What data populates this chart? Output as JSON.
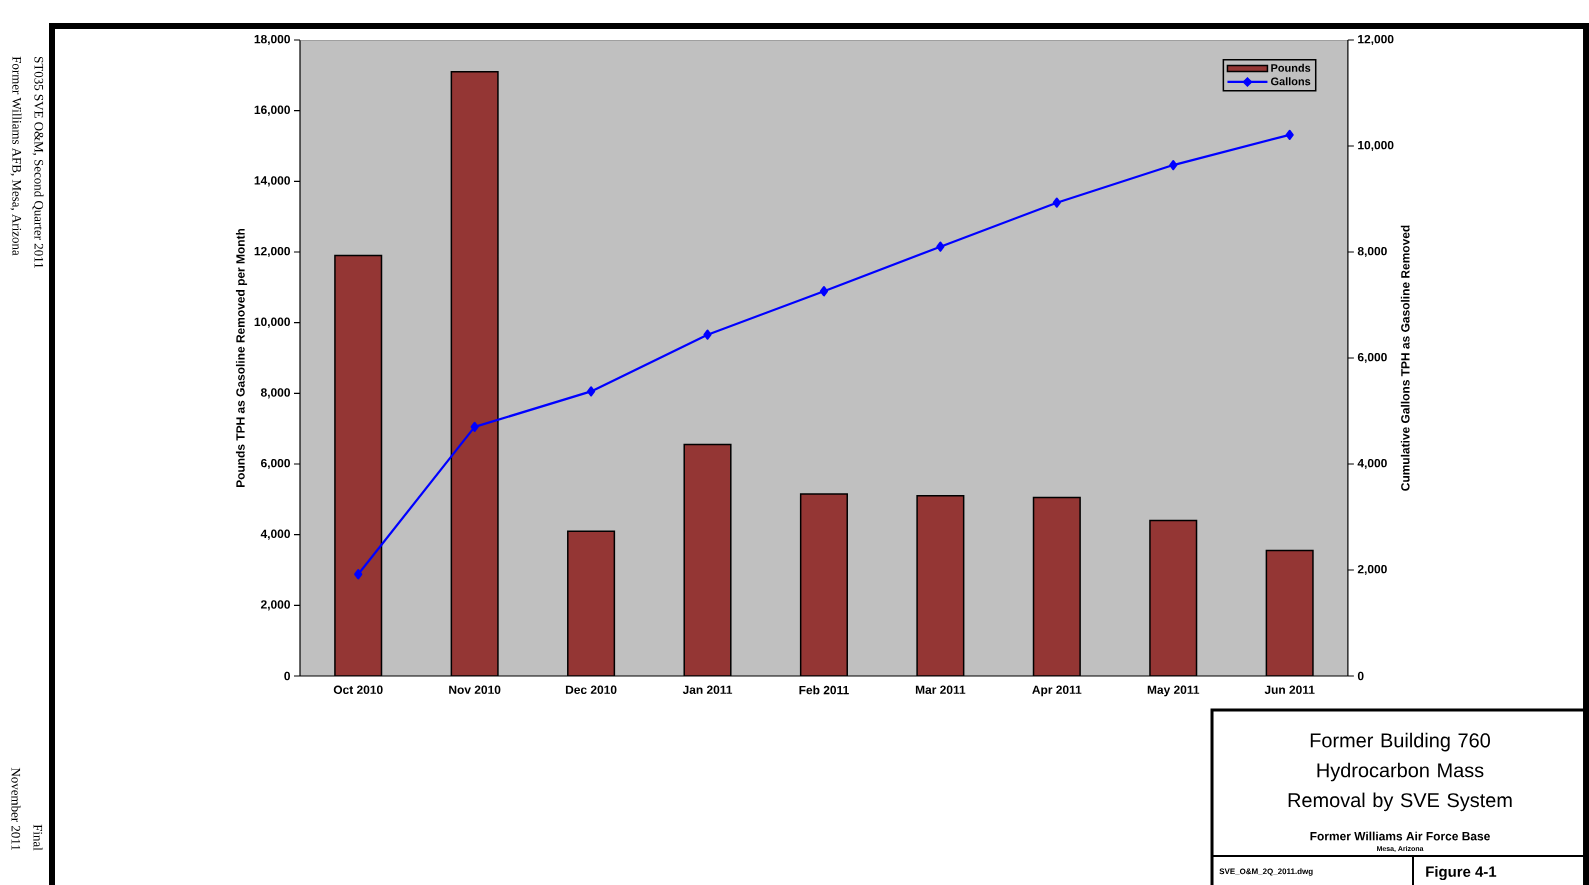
{
  "chart_data": {
    "type": "bar",
    "title": "Former Building 760 Hydrocarbon Mass Removal by SVE System",
    "subtitle": "Former Williams Air Force Base",
    "ylabel": "Pounds TPH as Gasoline Removed per Month",
    "y2label": "Cumulative Gallons TPH as Gasoline Removed",
    "categories": [
      "Oct 2010",
      "Nov 2010",
      "Dec 2010",
      "Jan 2011",
      "Feb 2011",
      "Mar 2011",
      "Apr 2011",
      "May 2011",
      "Jun 2011"
    ],
    "series": [
      {
        "name": "Pounds",
        "type": "bar",
        "color": "#943634",
        "values": [
          11900,
          17100,
          4100,
          6550,
          5150,
          5100,
          5050,
          4400,
          3550
        ]
      },
      {
        "name": "Gallons",
        "type": "line",
        "axis": "y2",
        "color": "#0000ff",
        "values": [
          1920,
          4700,
          5370,
          6440,
          7260,
          8100,
          8930,
          9640,
          10210
        ]
      }
    ],
    "ylim": [
      0,
      18000
    ],
    "yticks": [
      0,
      {
        "value": 2000,
        "label": "2,000"
      },
      {
        "value": 4000,
        "label": "4,000"
      },
      {
        "value": 6000,
        "label": "6,000"
      },
      {
        "value": 8000,
        "label": "8,000"
      },
      {
        "value": 10000,
        "label": "10,000"
      },
      {
        "value": 12000,
        "label": "12,000"
      },
      {
        "value": 14000,
        "label": "14,000"
      },
      {
        "value": 16000,
        "label": "16,000"
      },
      {
        "value": 18000,
        "label": "18,000"
      }
    ],
    "y2lim": [
      0,
      12000
    ],
    "y2ticks": [
      0,
      {
        "value": 2000,
        "label": "2,000"
      },
      {
        "value": 4000,
        "label": "4,000"
      },
      {
        "value": 6000,
        "label": "6,000"
      },
      {
        "value": 8000,
        "label": "8,000"
      },
      {
        "value": 10000,
        "label": "10,000"
      },
      {
        "value": 12000,
        "label": "12,000"
      }
    ],
    "marker": "diamond",
    "legend": "top right",
    "grid": false,
    "annotations": [
      "Mesa, Arizona",
      "SVE_O&M_2Q_2011.dwg",
      "Figure 4-1",
      "ST035 SVE O&M, Second Quarter 2011",
      "Former Williams AFB, Mesa, Arizona",
      "Final",
      "November 2011"
    ]
  }
}
